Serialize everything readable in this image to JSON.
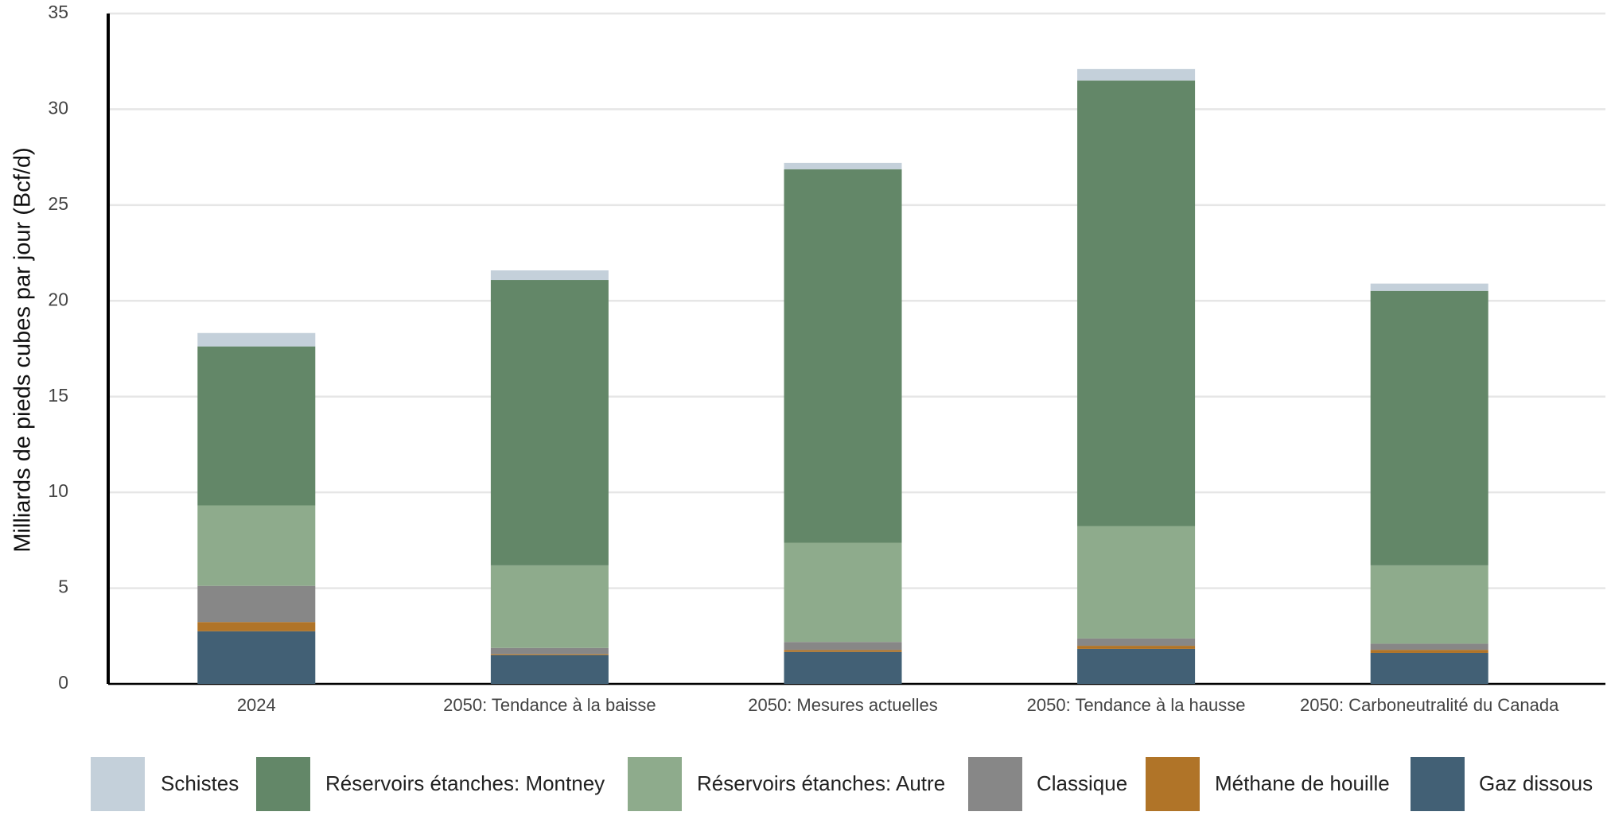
{
  "chart_data": {
    "type": "stacked-bar",
    "y_label": "Milliards de pieds cubes par jour (Bcf/d)",
    "categories": [
      "2024",
      "2050: Tendance à la baisse",
      "2050: Mesures actuelles",
      "2050: Tendance à la hausse",
      "2050: Carboneutralité du Canada"
    ],
    "series": [
      {
        "name": "Schistes",
        "color": "#c4d0da",
        "values": [
          0.7,
          0.5,
          0.33,
          0.6,
          0.38
        ]
      },
      {
        "name": "Réservoirs étanches: Montney",
        "color": "#638768",
        "values": [
          8.3,
          14.9,
          19.5,
          23.26,
          14.33
        ]
      },
      {
        "name": "Réservoirs étanches: Autre",
        "color": "#8eab8c",
        "values": [
          4.2,
          4.31,
          5.18,
          5.87,
          4.09
        ]
      },
      {
        "name": "Classique",
        "color": "#878787",
        "values": [
          1.89,
          0.33,
          0.42,
          0.38,
          0.32
        ]
      },
      {
        "name": "Méthane de houille",
        "color": "#b07428",
        "values": [
          0.48,
          0.05,
          0.1,
          0.16,
          0.16
        ]
      },
      {
        "name": "Gaz dissous",
        "color": "#426075",
        "values": [
          2.75,
          1.5,
          1.67,
          1.83,
          1.62
        ]
      }
    ],
    "ylim": [
      0,
      35
    ],
    "yticks": [
      0,
      5,
      10,
      15,
      20,
      25,
      30,
      35
    ],
    "grid": true
  }
}
